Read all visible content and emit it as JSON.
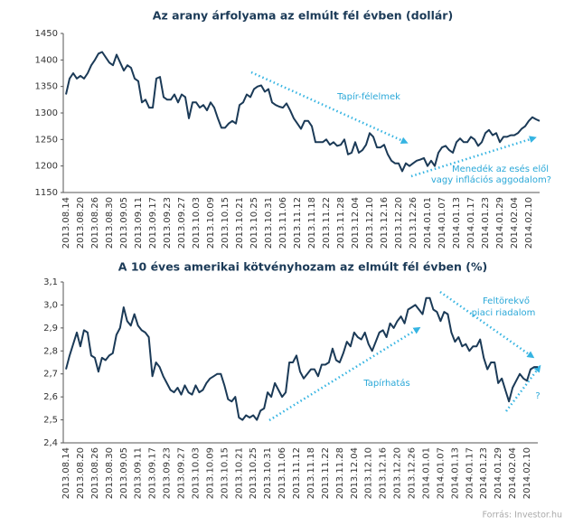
{
  "chart_data": [
    {
      "type": "line",
      "title": "Az arany árfolyama az elmúlt fél évben (dollár)",
      "categories": [
        "2013.08.14",
        null,
        null,
        null,
        "2013.08.20",
        null,
        null,
        null,
        "2013.08.26",
        null,
        null,
        null,
        "2013.08.30",
        null,
        null,
        null,
        "2013.09.05",
        null,
        null,
        null,
        "2013.09.11",
        null,
        null,
        null,
        "2013.09.17",
        null,
        null,
        null,
        "2013.09.23",
        null,
        null,
        null,
        "2013.09.27",
        null,
        null,
        null,
        "2013.10.03",
        null,
        null,
        null,
        "2013.10.09",
        null,
        null,
        null,
        "2013.10.15",
        null,
        null,
        null,
        "2013.10.21",
        null,
        null,
        null,
        "2013.10.25",
        null,
        null,
        null,
        "2013.10.31",
        null,
        null,
        null,
        "2013.11.06",
        null,
        null,
        null,
        "2013.11.12",
        null,
        null,
        null,
        "2013.11.18",
        null,
        null,
        null,
        "2013.11.22",
        null,
        null,
        null,
        "2013.11.28",
        null,
        null,
        null,
        "2013.12.04",
        null,
        null,
        null,
        "2013.12.10",
        null,
        null,
        null,
        "2013.12.16",
        null,
        null,
        null,
        "2013.12.20",
        null,
        null,
        null,
        "2013.12.26",
        null,
        null,
        null,
        "2014.01.01",
        null,
        null,
        null,
        "2014.01.07",
        null,
        null,
        null,
        "2014.01.13",
        null,
        null,
        null,
        "2014.01.17",
        null,
        null,
        null,
        "2014.01.23",
        null,
        null,
        null,
        "2014.01.29",
        null,
        null,
        null,
        "2014.02.04",
        null,
        null,
        null,
        "2014.02.10",
        null,
        null,
        null
      ],
      "series": [
        {
          "color": "#1b3a57",
          "values": [
            1335,
            1365,
            1375,
            1365,
            1370,
            1365,
            1375,
            1390,
            1400,
            1412,
            1415,
            1405,
            1395,
            1390,
            1410,
            1395,
            1380,
            1390,
            1385,
            1365,
            1360,
            1320,
            1325,
            1310,
            1310,
            1365,
            1368,
            1330,
            1325,
            1325,
            1335,
            1320,
            1335,
            1330,
            1290,
            1320,
            1320,
            1310,
            1315,
            1305,
            1320,
            1310,
            1290,
            1272,
            1272,
            1280,
            1285,
            1280,
            1315,
            1320,
            1335,
            1330,
            1345,
            1350,
            1352,
            1340,
            1345,
            1320,
            1315,
            1312,
            1310,
            1318,
            1305,
            1290,
            1280,
            1270,
            1285,
            1285,
            1275,
            1245,
            1245,
            1245,
            1250,
            1240,
            1245,
            1238,
            1240,
            1250,
            1222,
            1225,
            1245,
            1225,
            1230,
            1240,
            1262,
            1255,
            1235,
            1235,
            1240,
            1222,
            1210,
            1205,
            1205,
            1190,
            1205,
            1200,
            1205,
            1210,
            1212,
            1215,
            1200,
            1210,
            1200,
            1225,
            1235,
            1238,
            1230,
            1225,
            1245,
            1252,
            1245,
            1245,
            1255,
            1250,
            1238,
            1245,
            1262,
            1268,
            1258,
            1262,
            1245,
            1255,
            1255,
            1258,
            1258,
            1262,
            1270,
            1275,
            1285,
            1292,
            1288,
            1285
          ]
        }
      ],
      "ylim": [
        1150,
        1450
      ],
      "yticks": [
        1150,
        1200,
        1250,
        1300,
        1350,
        1400,
        1450
      ],
      "annotations": [
        "Tapír-félelmek",
        "Menedék az esés elől",
        "vagy inflációs aggodalom?"
      ]
    },
    {
      "type": "line",
      "title": "A 10 éves amerikai kötvényhozam az elmúlt fél évben (%)",
      "categories": [
        "2013.08.14",
        null,
        null,
        null,
        "2013.08.20",
        null,
        null,
        null,
        "2013.08.26",
        null,
        null,
        null,
        "2013.08.30",
        null,
        null,
        null,
        "2013.09.05",
        null,
        null,
        null,
        "2013.09.11",
        null,
        null,
        null,
        "2013.09.17",
        null,
        null,
        null,
        "2013.09.23",
        null,
        null,
        null,
        "2013.09.27",
        null,
        null,
        null,
        "2013.10.03",
        null,
        null,
        null,
        "2013.10.09",
        null,
        null,
        null,
        "2013.10.15",
        null,
        null,
        null,
        "2013.10.21",
        null,
        null,
        null,
        "2013.10.25",
        null,
        null,
        null,
        "2013.10.31",
        null,
        null,
        null,
        "2013.11.06",
        null,
        null,
        null,
        "2013.11.12",
        null,
        null,
        null,
        "2013.11.18",
        null,
        null,
        null,
        "2013.11.22",
        null,
        null,
        null,
        "2013.11.28",
        null,
        null,
        null,
        "2013.12.04",
        null,
        null,
        null,
        "2013.12.10",
        null,
        null,
        null,
        "2013.12.16",
        null,
        null,
        null,
        "2013.12.20",
        null,
        null,
        null,
        "2013.12.26",
        null,
        null,
        null,
        "2014.01.01",
        null,
        null,
        null,
        "2014.01.07",
        null,
        null,
        null,
        "2014.01.13",
        null,
        null,
        null,
        "2014.01.17",
        null,
        null,
        null,
        "2014.01.23",
        null,
        null,
        null,
        "2014.01.29",
        null,
        null,
        null,
        "2014.02.04",
        null,
        null,
        null,
        "2014.02.10",
        null,
        null,
        null
      ],
      "series": [
        {
          "color": "#1b3a57",
          "values": [
            2.72,
            2.78,
            2.83,
            2.88,
            2.82,
            2.89,
            2.88,
            2.78,
            2.77,
            2.71,
            2.77,
            2.76,
            2.78,
            2.79,
            2.87,
            2.9,
            2.99,
            2.93,
            2.91,
            2.96,
            2.91,
            2.89,
            2.88,
            2.86,
            2.69,
            2.75,
            2.73,
            2.69,
            2.66,
            2.63,
            2.62,
            2.64,
            2.61,
            2.65,
            2.62,
            2.61,
            2.65,
            2.62,
            2.63,
            2.66,
            2.68,
            2.69,
            2.7,
            2.7,
            2.65,
            2.59,
            2.58,
            2.6,
            2.51,
            2.5,
            2.52,
            2.51,
            2.52,
            2.5,
            2.54,
            2.55,
            2.62,
            2.6,
            2.66,
            2.63,
            2.6,
            2.62,
            2.75,
            2.75,
            2.78,
            2.71,
            2.68,
            2.7,
            2.72,
            2.72,
            2.69,
            2.74,
            2.74,
            2.75,
            2.81,
            2.76,
            2.75,
            2.79,
            2.84,
            2.82,
            2.88,
            2.86,
            2.85,
            2.88,
            2.83,
            2.8,
            2.84,
            2.88,
            2.89,
            2.86,
            2.92,
            2.9,
            2.93,
            2.95,
            2.92,
            2.98,
            2.99,
            3.0,
            2.98,
            2.96,
            3.03,
            3.03,
            2.98,
            2.97,
            2.93,
            2.97,
            2.96,
            2.88,
            2.84,
            2.86,
            2.82,
            2.83,
            2.8,
            2.82,
            2.82,
            2.85,
            2.77,
            2.72,
            2.75,
            2.75,
            2.66,
            2.68,
            2.63,
            2.58,
            2.64,
            2.67,
            2.7,
            2.68,
            2.67,
            2.72,
            2.73,
            2.73
          ]
        }
      ],
      "ylim": [
        2.4,
        3.1
      ],
      "yticks": [
        {
          "value": 2.4,
          "label": "2,4"
        },
        {
          "value": 2.5,
          "label": "2,5"
        },
        {
          "value": 2.6,
          "label": "2,6"
        },
        {
          "value": 2.7,
          "label": "2,7"
        },
        {
          "value": 2.8,
          "label": "2,8"
        },
        {
          "value": 2.9,
          "label": "2,9"
        },
        {
          "value": 3.0,
          "label": "3,0"
        },
        {
          "value": 3.1,
          "label": "3,1"
        }
      ],
      "annotations": [
        "Tapírhatás",
        "Feltörekvő",
        "piaci riadalom",
        "?"
      ]
    }
  ],
  "source": "Forrás: Investor.hu"
}
